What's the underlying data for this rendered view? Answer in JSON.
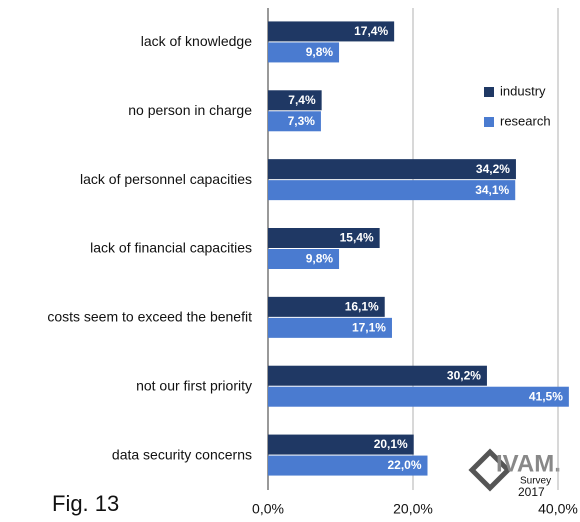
{
  "chart_data": {
    "type": "bar",
    "orientation": "horizontal",
    "caption": "Fig. 13",
    "categories": [
      "lack of knowledge",
      "no person in charge",
      "lack of personnel capacities",
      "lack of financial capacities",
      "costs seem to exceed the benefit",
      "not our first priority",
      "data security concerns"
    ],
    "series": [
      {
        "name": "industry",
        "color": "#1f3864",
        "values": [
          17.4,
          7.4,
          34.2,
          15.4,
          16.1,
          30.2,
          20.1
        ],
        "value_labels": [
          "17,4%",
          "7,4%",
          "34,2%",
          "15,4%",
          "16,1%",
          "30,2%",
          "20,1%"
        ]
      },
      {
        "name": "research",
        "color": "#4a7bd0",
        "values": [
          9.8,
          7.3,
          34.1,
          9.8,
          17.1,
          41.5,
          22.0
        ],
        "value_labels": [
          "9,8%",
          "7,3%",
          "34,1%",
          "9,8%",
          "17,1%",
          "41,5%",
          "22,0%"
        ]
      }
    ],
    "xlim": [
      0,
      40
    ],
    "xticks": [
      {
        "value": 0,
        "label": "0,0%"
      },
      {
        "value": 20,
        "label": "20,0%"
      },
      {
        "value": 40,
        "label": "40,0%"
      }
    ],
    "grid": true,
    "legend": "right",
    "logo": {
      "name": "IVAM.",
      "subtitle": "Survey",
      "year": "2017"
    }
  }
}
